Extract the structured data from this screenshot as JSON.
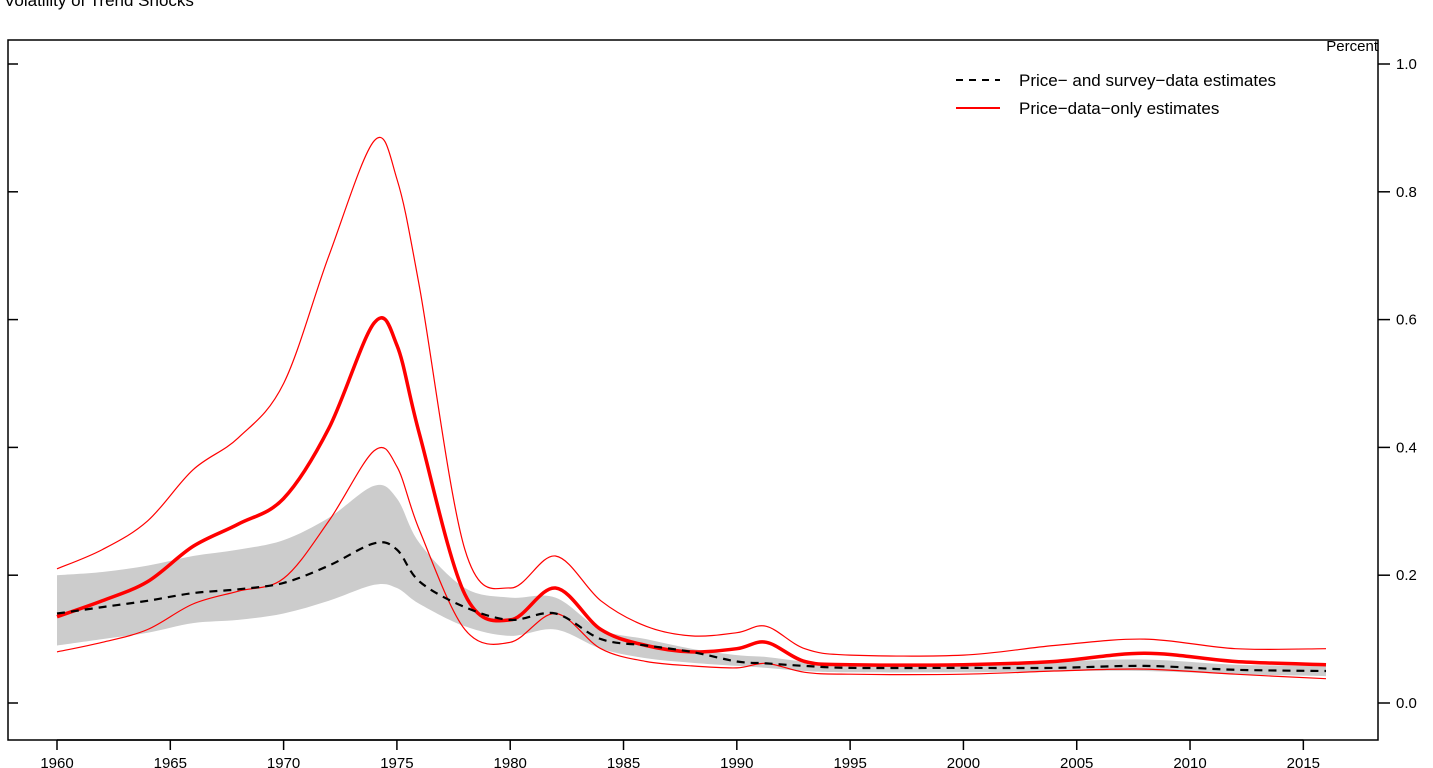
{
  "title": "Volatility of Trend Shocks",
  "chart_data": {
    "type": "line",
    "title": "Volatility of Trend Shocks",
    "ylabel": "Percent",
    "xlabel": "",
    "xlim": [
      1960,
      2016
    ],
    "ylim": [
      0.0,
      1.0
    ],
    "x_ticks": [
      "1960",
      "1965",
      "1970",
      "1975",
      "1980",
      "1985",
      "1990",
      "1995",
      "2000",
      "2005",
      "2010",
      "2015"
    ],
    "y_ticks": [
      "0.0",
      "0.2",
      "0.4",
      "0.6",
      "0.8",
      "1.0"
    ],
    "grid": false,
    "legend_position": "top-right",
    "legend": [
      {
        "label": "Price− and survey−data estimates",
        "style": "dashed",
        "color": "#000000"
      },
      {
        "label": "Price−data−only estimates",
        "style": "solid",
        "color": "#ff0000"
      }
    ],
    "colors": {
      "band": "#cccccc",
      "price_only": "#ff0000",
      "survey": "#000000"
    },
    "x": [
      1960,
      1962,
      1964,
      1966,
      1968,
      1970,
      1972,
      1974,
      1975,
      1976,
      1978,
      1980,
      1982,
      1984,
      1986,
      1988,
      1990,
      1991.3,
      1993,
      1995,
      2000,
      2004,
      2008,
      2012,
      2016
    ],
    "series": [
      {
        "name": "Price−data−only estimates",
        "role": "median",
        "style": "solid-thick",
        "values": [
          0.135,
          0.16,
          0.19,
          0.245,
          0.28,
          0.32,
          0.43,
          0.595,
          0.56,
          0.42,
          0.17,
          0.13,
          0.18,
          0.115,
          0.09,
          0.08,
          0.085,
          0.095,
          0.065,
          0.06,
          0.06,
          0.065,
          0.078,
          0.065,
          0.06
        ]
      },
      {
        "name": "Price−data−only upper band",
        "role": "upper",
        "style": "solid-thin",
        "values": [
          0.21,
          0.24,
          0.285,
          0.365,
          0.415,
          0.5,
          0.7,
          0.88,
          0.82,
          0.65,
          0.24,
          0.18,
          0.23,
          0.16,
          0.12,
          0.105,
          0.11,
          0.12,
          0.085,
          0.075,
          0.075,
          0.09,
          0.1,
          0.085,
          0.085
        ]
      },
      {
        "name": "Price−data−only lower band",
        "role": "lower",
        "style": "solid-thin",
        "values": [
          0.08,
          0.095,
          0.115,
          0.155,
          0.175,
          0.195,
          0.285,
          0.395,
          0.37,
          0.27,
          0.115,
          0.095,
          0.14,
          0.085,
          0.065,
          0.058,
          0.055,
          0.062,
          0.048,
          0.045,
          0.045,
          0.05,
          0.053,
          0.045,
          0.038
        ]
      },
      {
        "name": "Price− and survey−data estimates",
        "role": "survey-median",
        "style": "dashed",
        "values": [
          0.14,
          0.15,
          0.16,
          0.172,
          0.178,
          0.188,
          0.215,
          0.25,
          0.24,
          0.19,
          0.15,
          0.13,
          0.14,
          0.1,
          0.09,
          0.08,
          0.065,
          0.062,
          0.058,
          0.055,
          0.055,
          0.055,
          0.058,
          0.052,
          0.05
        ]
      },
      {
        "name": "Price− and survey−data band upper",
        "role": "band-upper",
        "style": "fill",
        "values": [
          0.2,
          0.205,
          0.215,
          0.23,
          0.24,
          0.255,
          0.29,
          0.34,
          0.32,
          0.25,
          0.18,
          0.165,
          0.165,
          0.115,
          0.1,
          0.085,
          0.075,
          0.072,
          0.065,
          0.062,
          0.062,
          0.065,
          0.068,
          0.06,
          0.058
        ]
      },
      {
        "name": "Price− and survey−data band lower",
        "role": "band-lower",
        "style": "fill",
        "values": [
          0.09,
          0.1,
          0.11,
          0.125,
          0.13,
          0.14,
          0.16,
          0.185,
          0.18,
          0.155,
          0.12,
          0.105,
          0.115,
          0.085,
          0.07,
          0.063,
          0.058,
          0.055,
          0.05,
          0.048,
          0.048,
          0.05,
          0.05,
          0.045,
          0.042
        ]
      }
    ]
  }
}
